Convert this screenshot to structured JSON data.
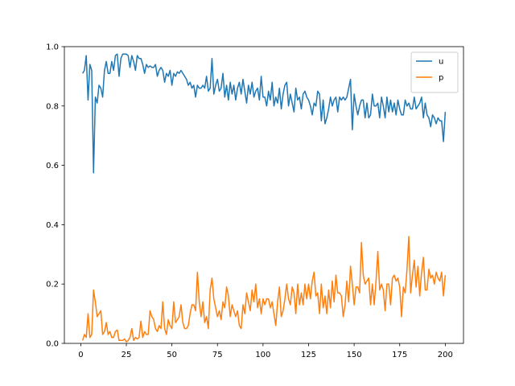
{
  "chart_data": {
    "type": "line",
    "x": [
      1,
      2,
      3,
      4,
      5,
      6,
      7,
      8,
      9,
      10,
      11,
      12,
      13,
      14,
      15,
      16,
      17,
      18,
      19,
      20,
      21,
      22,
      23,
      24,
      25,
      26,
      27,
      28,
      29,
      30,
      31,
      32,
      33,
      34,
      35,
      36,
      37,
      38,
      39,
      40,
      41,
      42,
      43,
      44,
      45,
      46,
      47,
      48,
      49,
      50,
      51,
      52,
      53,
      54,
      55,
      56,
      57,
      58,
      59,
      60,
      61,
      62,
      63,
      64,
      65,
      66,
      67,
      68,
      69,
      70,
      71,
      72,
      73,
      74,
      75,
      76,
      77,
      78,
      79,
      80,
      81,
      82,
      83,
      84,
      85,
      86,
      87,
      88,
      89,
      90,
      91,
      92,
      93,
      94,
      95,
      96,
      97,
      98,
      99,
      100,
      101,
      102,
      103,
      104,
      105,
      106,
      107,
      108,
      109,
      110,
      111,
      112,
      113,
      114,
      115,
      116,
      117,
      118,
      119,
      120,
      121,
      122,
      123,
      124,
      125,
      126,
      127,
      128,
      129,
      130,
      131,
      132,
      133,
      134,
      135,
      136,
      137,
      138,
      139,
      140,
      141,
      142,
      143,
      144,
      145,
      146,
      147,
      148,
      149,
      150,
      151,
      152,
      153,
      154,
      155,
      156,
      157,
      158,
      159,
      160,
      161,
      162,
      163,
      164,
      165,
      166,
      167,
      168,
      169,
      170,
      171,
      172,
      173,
      174,
      175,
      176,
      177,
      178,
      179,
      180,
      181,
      182,
      183,
      184,
      185,
      186,
      187,
      188,
      189,
      190,
      191,
      192,
      193,
      194,
      195,
      196,
      197,
      198,
      199,
      200
    ],
    "series": [
      {
        "name": "u",
        "color": "#1f77b4",
        "values": [
          0.91,
          0.92,
          0.97,
          0.82,
          0.94,
          0.92,
          0.575,
          0.83,
          0.81,
          0.87,
          0.86,
          0.83,
          0.92,
          0.95,
          0.91,
          0.91,
          0.95,
          0.92,
          0.97,
          0.975,
          0.9,
          0.96,
          0.975,
          0.975,
          0.975,
          0.97,
          0.93,
          0.97,
          0.95,
          0.92,
          0.97,
          0.96,
          0.96,
          0.94,
          0.91,
          0.94,
          0.93,
          0.935,
          0.93,
          0.93,
          0.94,
          0.9,
          0.92,
          0.93,
          0.92,
          0.88,
          0.91,
          0.9,
          0.92,
          0.87,
          0.91,
          0.9,
          0.915,
          0.91,
          0.92,
          0.91,
          0.9,
          0.89,
          0.87,
          0.88,
          0.86,
          0.87,
          0.83,
          0.87,
          0.86,
          0.86,
          0.87,
          0.86,
          0.9,
          0.85,
          0.86,
          0.96,
          0.84,
          0.87,
          0.89,
          0.85,
          0.86,
          0.91,
          0.83,
          0.87,
          0.82,
          0.88,
          0.84,
          0.87,
          0.82,
          0.86,
          0.88,
          0.84,
          0.89,
          0.85,
          0.81,
          0.87,
          0.84,
          0.88,
          0.83,
          0.85,
          0.86,
          0.82,
          0.9,
          0.83,
          0.83,
          0.8,
          0.85,
          0.82,
          0.88,
          0.8,
          0.83,
          0.81,
          0.86,
          0.79,
          0.84,
          0.87,
          0.88,
          0.8,
          0.84,
          0.81,
          0.78,
          0.86,
          0.82,
          0.83,
          0.79,
          0.84,
          0.85,
          0.83,
          0.82,
          0.8,
          0.77,
          0.81,
          0.8,
          0.85,
          0.84,
          0.75,
          0.82,
          0.74,
          0.76,
          0.79,
          0.83,
          0.8,
          0.82,
          0.83,
          0.78,
          0.83,
          0.82,
          0.83,
          0.82,
          0.83,
          0.86,
          0.89,
          0.72,
          0.84,
          0.8,
          0.77,
          0.8,
          0.82,
          0.82,
          0.76,
          0.81,
          0.76,
          0.77,
          0.84,
          0.8,
          0.8,
          0.81,
          0.76,
          0.83,
          0.8,
          0.76,
          0.83,
          0.78,
          0.82,
          0.78,
          0.81,
          0.77,
          0.82,
          0.79,
          0.77,
          0.77,
          0.82,
          0.8,
          0.81,
          0.79,
          0.79,
          0.83,
          0.79,
          0.8,
          0.81,
          0.83,
          0.76,
          0.81,
          0.77,
          0.76,
          0.73,
          0.77,
          0.76,
          0.74,
          0.76,
          0.75,
          0.75,
          0.68,
          0.78
        ]
      },
      {
        "name": "p",
        "color": "#ff7f0e",
        "values": [
          0.01,
          0.03,
          0.02,
          0.1,
          0.02,
          0.03,
          0.18,
          0.14,
          0.09,
          0.1,
          0.11,
          0.03,
          0.04,
          0.07,
          0.03,
          0.04,
          0.02,
          0.02,
          0.04,
          0.045,
          0.01,
          0.01,
          0.01,
          0.015,
          0.005,
          0.01,
          0.02,
          0.05,
          0.01,
          0.02,
          0.015,
          0.02,
          0.075,
          0.02,
          0.04,
          0.03,
          0.03,
          0.11,
          0.09,
          0.08,
          0.05,
          0.04,
          0.06,
          0.05,
          0.14,
          0.05,
          0.03,
          0.08,
          0.06,
          0.05,
          0.14,
          0.07,
          0.08,
          0.09,
          0.13,
          0.07,
          0.05,
          0.05,
          0.06,
          0.1,
          0.13,
          0.13,
          0.11,
          0.24,
          0.14,
          0.09,
          0.14,
          0.07,
          0.09,
          0.05,
          0.18,
          0.22,
          0.15,
          0.12,
          0.09,
          0.11,
          0.08,
          0.14,
          0.12,
          0.19,
          0.16,
          0.09,
          0.13,
          0.11,
          0.09,
          0.11,
          0.06,
          0.05,
          0.13,
          0.1,
          0.17,
          0.14,
          0.11,
          0.18,
          0.14,
          0.2,
          0.12,
          0.15,
          0.1,
          0.15,
          0.13,
          0.15,
          0.15,
          0.12,
          0.14,
          0.1,
          0.06,
          0.14,
          0.19,
          0.09,
          0.11,
          0.15,
          0.2,
          0.15,
          0.13,
          0.19,
          0.17,
          0.1,
          0.2,
          0.13,
          0.17,
          0.13,
          0.2,
          0.15,
          0.2,
          0.15,
          0.21,
          0.24,
          0.16,
          0.17,
          0.1,
          0.2,
          0.12,
          0.16,
          0.1,
          0.18,
          0.12,
          0.21,
          0.14,
          0.23,
          0.17,
          0.17,
          0.16,
          0.09,
          0.13,
          0.21,
          0.14,
          0.26,
          0.2,
          0.13,
          0.19,
          0.19,
          0.17,
          0.34,
          0.23,
          0.2,
          0.21,
          0.22,
          0.13,
          0.2,
          0.13,
          0.21,
          0.31,
          0.18,
          0.2,
          0.18,
          0.11,
          0.2,
          0.2,
          0.13,
          0.22,
          0.23,
          0.21,
          0.22,
          0.19,
          0.09,
          0.19,
          0.17,
          0.25,
          0.36,
          0.17,
          0.23,
          0.28,
          0.19,
          0.26,
          0.16,
          0.24,
          0.29,
          0.18,
          0.18,
          0.25,
          0.22,
          0.23,
          0.2,
          0.24,
          0.22,
          0.21,
          0.24,
          0.16,
          0.23
        ]
      }
    ],
    "xlim": [
      -9,
      210
    ],
    "xticks": [
      0,
      25,
      50,
      75,
      100,
      125,
      150,
      175,
      200
    ],
    "ylim": [
      0,
      1
    ],
    "yticks": [
      {
        "value": 0,
        "label": "0.0"
      },
      0.2,
      0.4,
      0.6,
      0.8,
      {
        "value": 1,
        "label": "1.0"
      }
    ],
    "legend": "upper right"
  }
}
